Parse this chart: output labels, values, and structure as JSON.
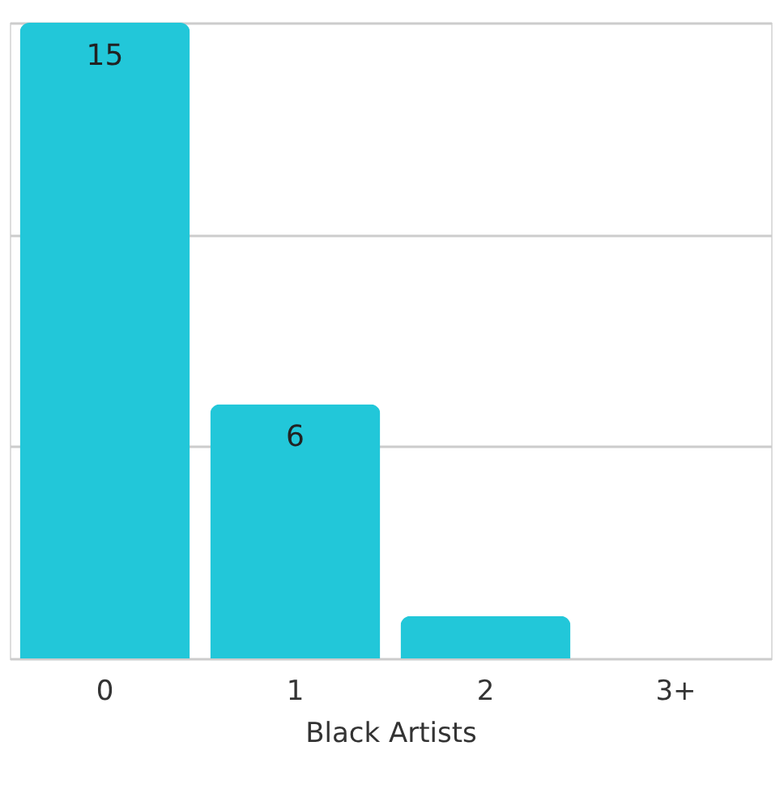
{
  "chart_data": {
    "type": "bar",
    "xlabel": "Black Artists",
    "categories": [
      "0",
      "1",
      "2",
      "3+"
    ],
    "values": [
      15,
      6,
      1,
      0
    ],
    "color": "#22c7d9",
    "value_labels": [
      "15",
      "6",
      null,
      null
    ],
    "ylim": [
      0,
      15
    ],
    "yticks": [
      {
        "value": 0,
        "label": null
      },
      {
        "value": 5,
        "label": null
      },
      {
        "value": 10,
        "label": null
      },
      {
        "value": 15,
        "label": null
      }
    ],
    "grid": "y",
    "tick_labels": "x"
  }
}
